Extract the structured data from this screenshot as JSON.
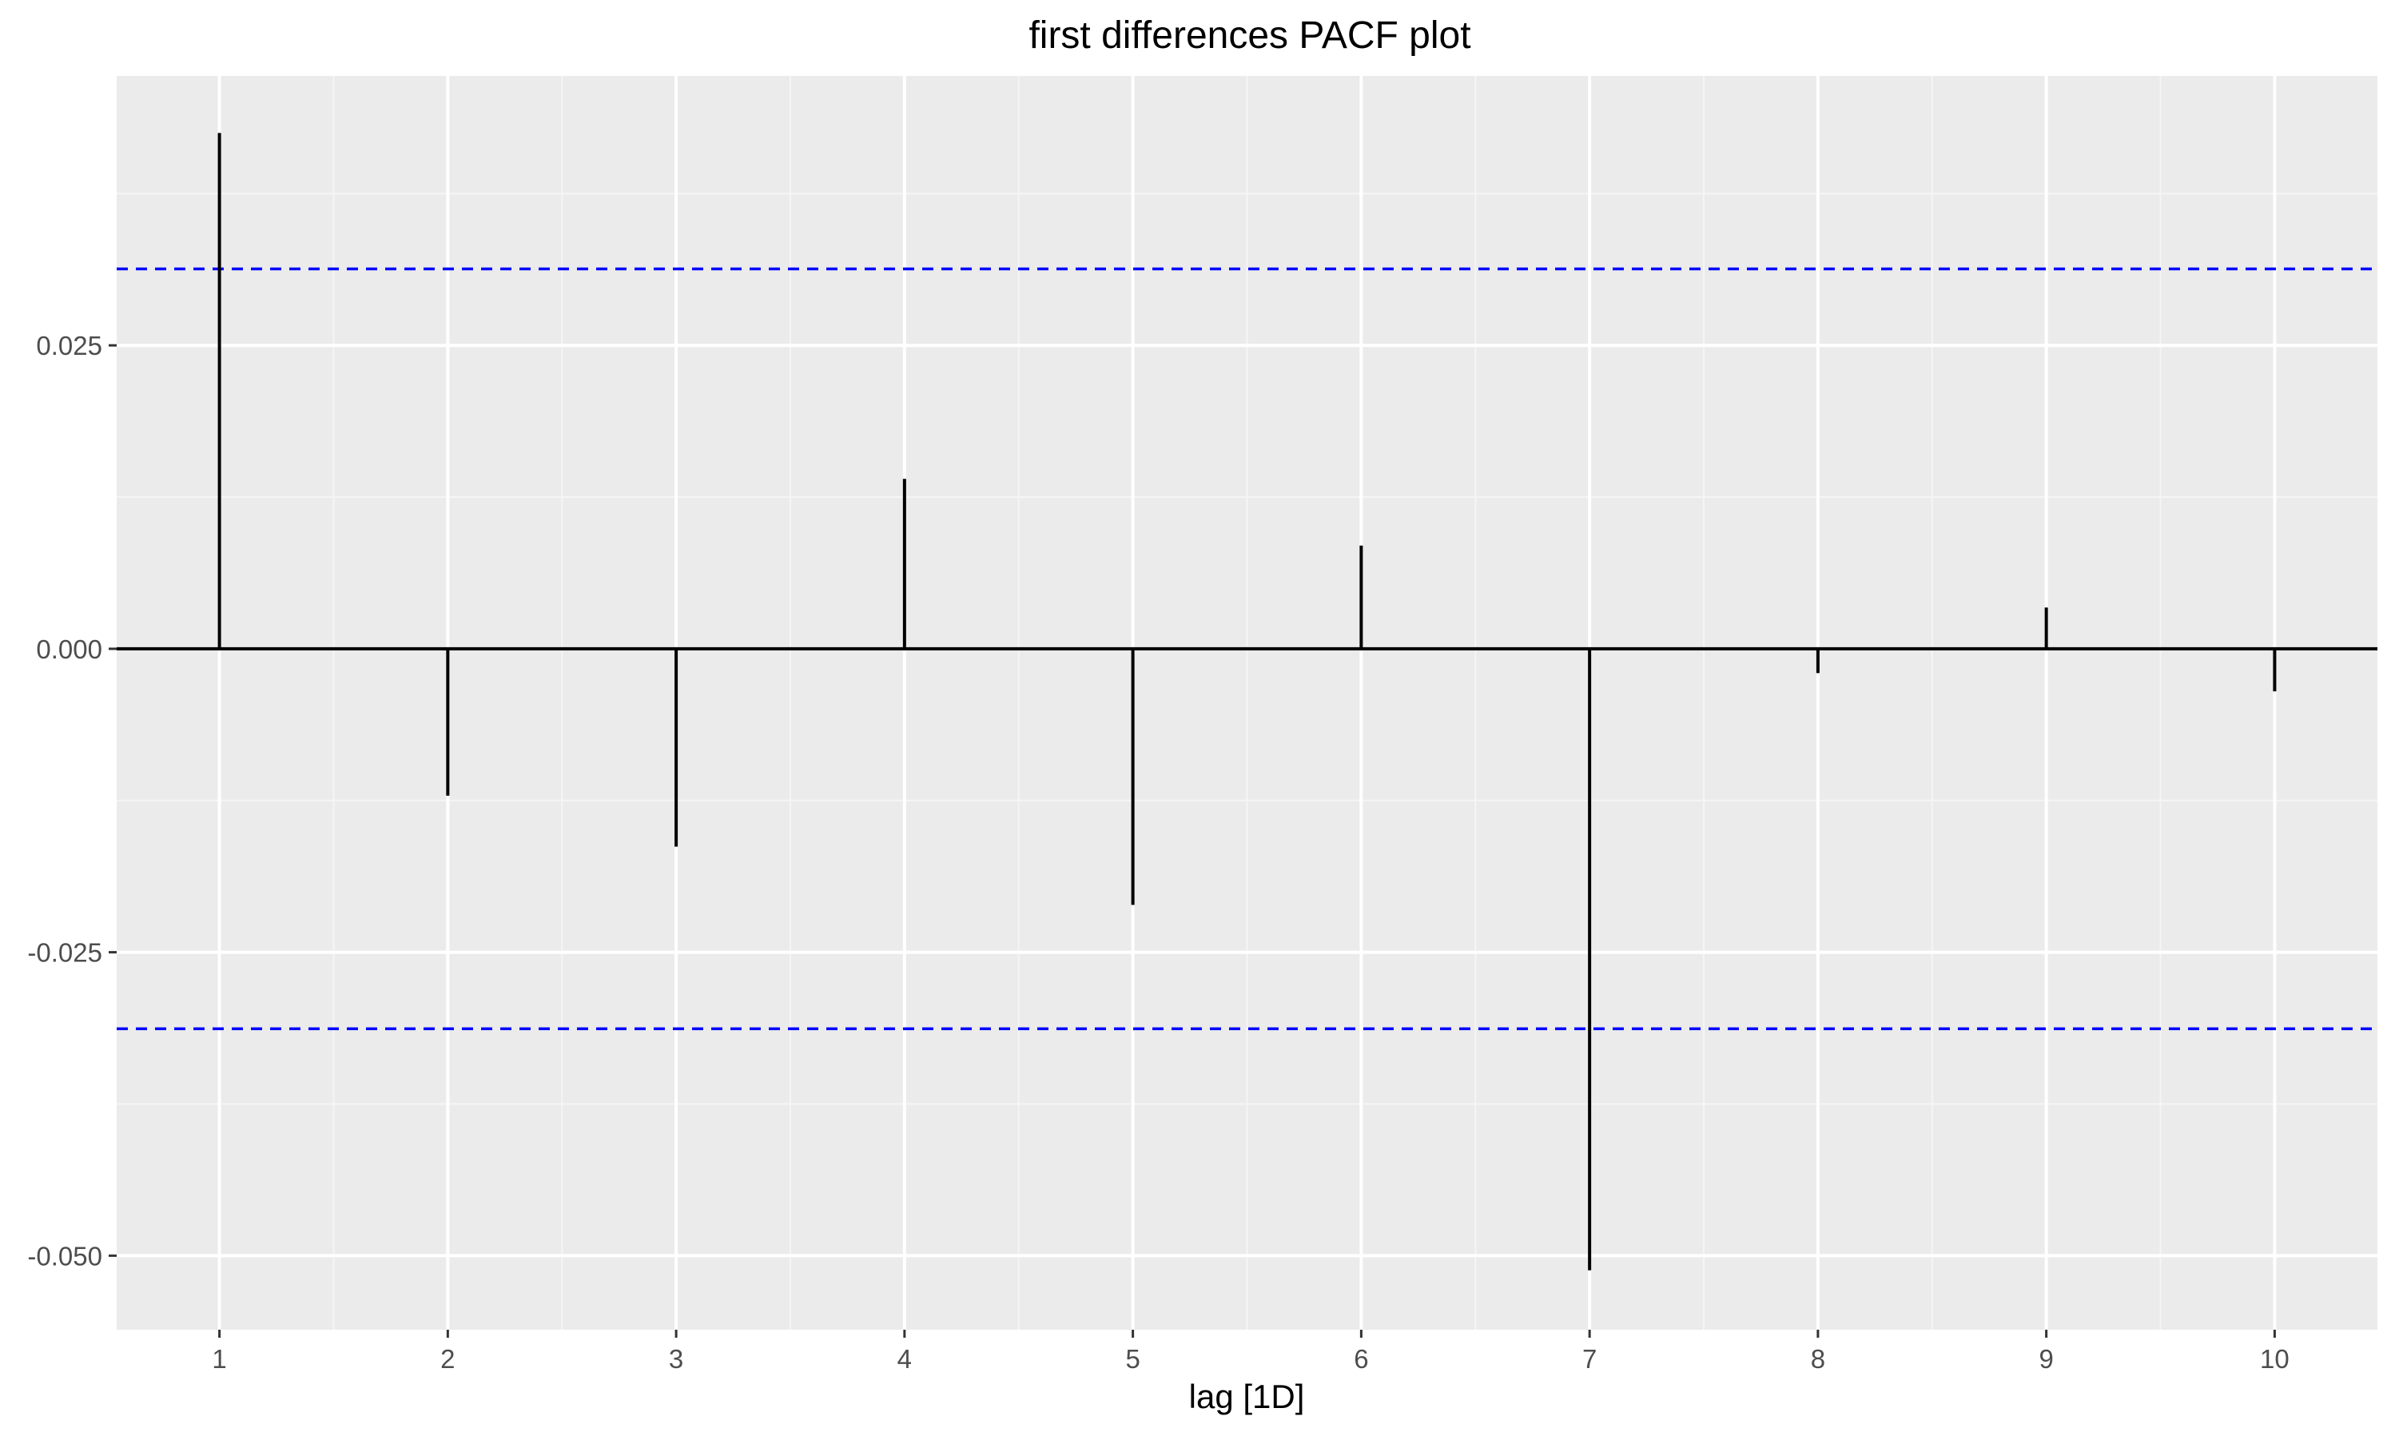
{
  "chart_data": {
    "type": "bar",
    "title": "first differences PACF plot",
    "xlabel": "lag [1D]",
    "ylabel": "",
    "x": [
      1,
      2,
      3,
      4,
      5,
      6,
      7,
      8,
      9,
      10
    ],
    "values": [
      0.0425,
      -0.0121,
      -0.0163,
      0.014,
      -0.0211,
      0.0085,
      -0.0512,
      -0.002,
      0.0034,
      -0.0035
    ],
    "x_ticks": [
      "1",
      "2",
      "3",
      "4",
      "5",
      "6",
      "7",
      "8",
      "9",
      "10"
    ],
    "y_ticks": [
      {
        "value": 0.025,
        "label": "0.025"
      },
      {
        "value": 0.0,
        "label": "0.000"
      },
      {
        "value": -0.025,
        "label": "-0.025"
      },
      {
        "value": -0.05,
        "label": "-0.050"
      }
    ],
    "xlim": [
      0.55,
      10.45
    ],
    "ylim": [
      -0.0561,
      0.0472
    ],
    "significance_bounds": [
      0.0313,
      -0.0313
    ],
    "grid": true,
    "legend": "none",
    "colors": {
      "panel_background": "#ebebeb",
      "grid_major": "#ffffff",
      "grid_minor": "#f5f5f5",
      "spike": "#000000",
      "bound_line": "#0000ff"
    }
  }
}
